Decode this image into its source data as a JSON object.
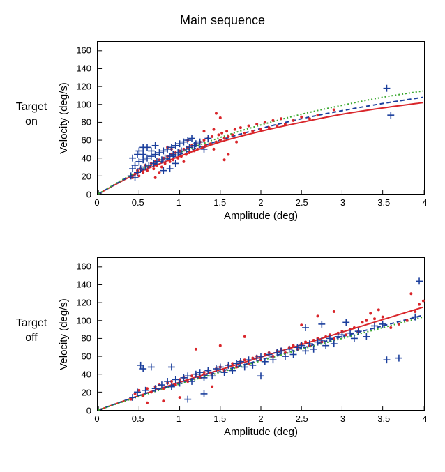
{
  "main_title": "Main sequence",
  "row_labels": {
    "top": "Target\non",
    "bottom": "Target\noff"
  },
  "axes": {
    "xlabel": "Amplitude (deg)",
    "ylabel": "Velocity (deg/s)",
    "xlim": [
      0,
      4
    ],
    "ylim": [
      0,
      170
    ],
    "xticks": [
      0,
      0.5,
      1,
      1.5,
      2,
      2.5,
      3,
      3.5,
      4
    ],
    "xtick_labels": [
      "0",
      "0.5",
      "1",
      "1.5",
      "2",
      "2.5",
      "3",
      "3.5",
      "4"
    ],
    "yticks": [
      0,
      20,
      40,
      60,
      80,
      100,
      120,
      140,
      160
    ],
    "ytick_labels": [
      "0",
      "20",
      "40",
      "60",
      "80",
      "100",
      "120",
      "140",
      "160"
    ],
    "label_fontsize": 15,
    "tick_fontsize": 13
  },
  "colors": {
    "border": "#000000",
    "background": "#ffffff",
    "series_red": "#d9252a",
    "series_blue": "#1a3e9c",
    "curve_red": "#d9252a",
    "curve_blue": "#1a3e9c",
    "curve_green": "#3aa82e"
  },
  "charts": {
    "top": {
      "type": "scatter",
      "red_points": [
        [
          0.42,
          18
        ],
        [
          0.45,
          22
        ],
        [
          0.48,
          26
        ],
        [
          0.5,
          20
        ],
        [
          0.52,
          28
        ],
        [
          0.55,
          24
        ],
        [
          0.58,
          32
        ],
        [
          0.6,
          26
        ],
        [
          0.62,
          30
        ],
        [
          0.65,
          34
        ],
        [
          0.68,
          28
        ],
        [
          0.7,
          36
        ],
        [
          0.72,
          32
        ],
        [
          0.75,
          38
        ],
        [
          0.78,
          30
        ],
        [
          0.8,
          40
        ],
        [
          0.82,
          34
        ],
        [
          0.85,
          42
        ],
        [
          0.88,
          36
        ],
        [
          0.9,
          44
        ],
        [
          0.92,
          38
        ],
        [
          0.95,
          46
        ],
        [
          0.98,
          40
        ],
        [
          1.0,
          48
        ],
        [
          1.02,
          42
        ],
        [
          1.05,
          50
        ],
        [
          1.08,
          44
        ],
        [
          1.1,
          52
        ],
        [
          1.12,
          46
        ],
        [
          1.15,
          54
        ],
        [
          1.18,
          48
        ],
        [
          1.2,
          56
        ],
        [
          1.22,
          50
        ],
        [
          1.25,
          58
        ],
        [
          1.28,
          52
        ],
        [
          1.3,
          60
        ],
        [
          1.32,
          54
        ],
        [
          1.35,
          62
        ],
        [
          1.38,
          56
        ],
        [
          1.4,
          64
        ],
        [
          1.42,
          50
        ],
        [
          1.45,
          58
        ],
        [
          1.48,
          66
        ],
        [
          1.5,
          60
        ],
        [
          1.52,
          68
        ],
        [
          1.55,
          62
        ],
        [
          1.58,
          70
        ],
        [
          1.6,
          64
        ],
        [
          1.45,
          90
        ],
        [
          1.5,
          85
        ],
        [
          1.65,
          66
        ],
        [
          1.68,
          72
        ],
        [
          1.7,
          58
        ],
        [
          1.75,
          74
        ],
        [
          1.8,
          68
        ],
        [
          1.85,
          76
        ],
        [
          1.9,
          70
        ],
        [
          1.95,
          78
        ],
        [
          2.0,
          72
        ],
        [
          2.05,
          80
        ],
        [
          2.1,
          74
        ],
        [
          2.15,
          82
        ],
        [
          2.2,
          76
        ],
        [
          2.25,
          84
        ],
        [
          2.3,
          78
        ],
        [
          2.4,
          82
        ],
        [
          2.5,
          86
        ],
        [
          2.6,
          84
        ],
        [
          2.7,
          88
        ],
        [
          2.9,
          94
        ],
        [
          1.55,
          38
        ],
        [
          1.6,
          44
        ],
        [
          1.42,
          72
        ],
        [
          1.3,
          70
        ],
        [
          0.9,
          50
        ],
        [
          0.85,
          52
        ],
        [
          1.1,
          60
        ],
        [
          1.05,
          36
        ],
        [
          0.7,
          18
        ],
        [
          0.75,
          24
        ]
      ],
      "blue_points": [
        [
          0.4,
          20
        ],
        [
          0.42,
          28
        ],
        [
          0.45,
          32
        ],
        [
          0.48,
          24
        ],
        [
          0.5,
          36
        ],
        [
          0.52,
          28
        ],
        [
          0.55,
          38
        ],
        [
          0.58,
          30
        ],
        [
          0.6,
          40
        ],
        [
          0.62,
          32
        ],
        [
          0.65,
          42
        ],
        [
          0.68,
          34
        ],
        [
          0.7,
          44
        ],
        [
          0.72,
          36
        ],
        [
          0.75,
          46
        ],
        [
          0.78,
          38
        ],
        [
          0.8,
          48
        ],
        [
          0.82,
          40
        ],
        [
          0.85,
          50
        ],
        [
          0.88,
          42
        ],
        [
          0.9,
          52
        ],
        [
          0.92,
          44
        ],
        [
          0.95,
          54
        ],
        [
          0.98,
          46
        ],
        [
          1.0,
          56
        ],
        [
          1.02,
          48
        ],
        [
          1.05,
          58
        ],
        [
          1.08,
          50
        ],
        [
          1.1,
          60
        ],
        [
          1.12,
          52
        ],
        [
          1.15,
          62
        ],
        [
          1.18,
          54
        ],
        [
          1.2,
          56
        ],
        [
          1.25,
          58
        ],
        [
          1.3,
          50
        ],
        [
          1.35,
          62
        ],
        [
          0.5,
          48
        ],
        [
          0.55,
          52
        ],
        [
          0.42,
          40
        ],
        [
          0.48,
          44
        ],
        [
          3.6,
          88
        ],
        [
          3.55,
          118
        ],
        [
          0.95,
          34
        ],
        [
          0.88,
          28
        ],
        [
          0.8,
          26
        ],
        [
          0.7,
          54
        ],
        [
          0.65,
          48
        ],
        [
          0.6,
          52
        ],
        [
          0.55,
          44
        ],
        [
          0.45,
          18
        ]
      ],
      "curves": {
        "red": {
          "color_key": "curve_red",
          "dash": "none",
          "width": 2.0,
          "points": [
            [
              0,
              0
            ],
            [
              0.5,
              24
            ],
            [
              1.0,
              42
            ],
            [
              1.5,
              58
            ],
            [
              2.0,
              70
            ],
            [
              2.5,
              80
            ],
            [
              3.0,
              89
            ],
            [
              3.5,
              96
            ],
            [
              4.0,
              102
            ]
          ]
        },
        "blue": {
          "color_key": "curve_blue",
          "dash": "6,4",
          "width": 2.0,
          "points": [
            [
              0,
              0
            ],
            [
              0.5,
              25
            ],
            [
              1.0,
              44
            ],
            [
              1.5,
              60
            ],
            [
              2.0,
              73
            ],
            [
              2.5,
              84
            ],
            [
              3.0,
              93
            ],
            [
              3.5,
              101
            ],
            [
              4.0,
              108
            ]
          ]
        },
        "green": {
          "color_key": "curve_green",
          "dash": "2,3",
          "width": 2.0,
          "points": [
            [
              0,
              0
            ],
            [
              0.5,
              26
            ],
            [
              1.0,
              46
            ],
            [
              1.5,
              63
            ],
            [
              2.0,
              77
            ],
            [
              2.5,
              89
            ],
            [
              3.0,
              99
            ],
            [
              3.5,
              108
            ],
            [
              4.0,
              115
            ]
          ]
        }
      }
    },
    "bottom": {
      "type": "scatter",
      "red_points": [
        [
          0.4,
          12
        ],
        [
          0.45,
          18
        ],
        [
          0.5,
          22
        ],
        [
          0.55,
          16
        ],
        [
          0.6,
          24
        ],
        [
          0.65,
          20
        ],
        [
          0.7,
          26
        ],
        [
          0.75,
          28
        ],
        [
          0.8,
          24
        ],
        [
          0.85,
          30
        ],
        [
          0.9,
          32
        ],
        [
          0.95,
          28
        ],
        [
          1.0,
          34
        ],
        [
          1.05,
          36
        ],
        [
          1.1,
          32
        ],
        [
          1.15,
          38
        ],
        [
          1.2,
          40
        ],
        [
          1.25,
          36
        ],
        [
          1.3,
          42
        ],
        [
          1.35,
          44
        ],
        [
          1.4,
          40
        ],
        [
          1.45,
          46
        ],
        [
          1.5,
          48
        ],
        [
          1.55,
          44
        ],
        [
          1.6,
          50
        ],
        [
          1.65,
          52
        ],
        [
          1.7,
          48
        ],
        [
          1.75,
          54
        ],
        [
          1.8,
          56
        ],
        [
          1.85,
          52
        ],
        [
          1.9,
          58
        ],
        [
          1.95,
          60
        ],
        [
          2.0,
          56
        ],
        [
          2.05,
          62
        ],
        [
          2.1,
          64
        ],
        [
          2.15,
          60
        ],
        [
          2.2,
          66
        ],
        [
          2.25,
          68
        ],
        [
          2.3,
          64
        ],
        [
          2.35,
          70
        ],
        [
          2.4,
          72
        ],
        [
          2.45,
          68
        ],
        [
          2.5,
          74
        ],
        [
          2.55,
          76
        ],
        [
          2.6,
          72
        ],
        [
          2.65,
          78
        ],
        [
          2.7,
          80
        ],
        [
          2.75,
          76
        ],
        [
          2.8,
          82
        ],
        [
          2.85,
          84
        ],
        [
          2.9,
          80
        ],
        [
          2.95,
          86
        ],
        [
          3.0,
          88
        ],
        [
          3.05,
          84
        ],
        [
          3.1,
          90
        ],
        [
          3.15,
          92
        ],
        [
          3.2,
          88
        ],
        [
          3.25,
          98
        ],
        [
          3.3,
          100
        ],
        [
          3.35,
          108
        ],
        [
          3.4,
          102
        ],
        [
          3.45,
          112
        ],
        [
          3.5,
          104
        ],
        [
          3.6,
          92
        ],
        [
          3.7,
          96
        ],
        [
          3.8,
          100
        ],
        [
          3.85,
          130
        ],
        [
          3.9,
          110
        ],
        [
          3.95,
          118
        ],
        [
          4.0,
          122
        ],
        [
          1.2,
          68
        ],
        [
          1.5,
          72
        ],
        [
          1.8,
          82
        ],
        [
          2.7,
          105
        ],
        [
          2.9,
          110
        ],
        [
          2.5,
          95
        ],
        [
          0.8,
          10
        ],
        [
          1.0,
          14
        ],
        [
          1.4,
          26
        ],
        [
          0.6,
          8
        ]
      ],
      "blue_points": [
        [
          0.42,
          14
        ],
        [
          0.48,
          20
        ],
        [
          0.52,
          50
        ],
        [
          0.58,
          22
        ],
        [
          0.65,
          48
        ],
        [
          0.7,
          24
        ],
        [
          0.78,
          28
        ],
        [
          0.85,
          32
        ],
        [
          0.9,
          26
        ],
        [
          0.95,
          34
        ],
        [
          1.0,
          30
        ],
        [
          1.05,
          36
        ],
        [
          1.1,
          38
        ],
        [
          1.15,
          32
        ],
        [
          1.2,
          40
        ],
        [
          1.25,
          42
        ],
        [
          1.3,
          36
        ],
        [
          1.35,
          44
        ],
        [
          1.4,
          38
        ],
        [
          1.45,
          46
        ],
        [
          1.5,
          48
        ],
        [
          1.55,
          42
        ],
        [
          1.6,
          50
        ],
        [
          1.65,
          44
        ],
        [
          1.7,
          52
        ],
        [
          1.75,
          54
        ],
        [
          1.8,
          48
        ],
        [
          1.85,
          56
        ],
        [
          1.9,
          50
        ],
        [
          1.95,
          58
        ],
        [
          2.0,
          60
        ],
        [
          2.05,
          54
        ],
        [
          2.1,
          62
        ],
        [
          2.15,
          56
        ],
        [
          2.2,
          64
        ],
        [
          2.25,
          66
        ],
        [
          2.3,
          60
        ],
        [
          2.35,
          68
        ],
        [
          2.4,
          62
        ],
        [
          2.45,
          70
        ],
        [
          2.5,
          72
        ],
        [
          2.55,
          66
        ],
        [
          2.6,
          74
        ],
        [
          2.65,
          68
        ],
        [
          2.7,
          76
        ],
        [
          2.75,
          78
        ],
        [
          2.8,
          72
        ],
        [
          2.85,
          80
        ],
        [
          2.9,
          74
        ],
        [
          2.95,
          82
        ],
        [
          3.0,
          84
        ],
        [
          3.05,
          98
        ],
        [
          3.1,
          86
        ],
        [
          3.15,
          80
        ],
        [
          3.2,
          88
        ],
        [
          3.3,
          82
        ],
        [
          3.4,
          94
        ],
        [
          3.5,
          96
        ],
        [
          3.55,
          56
        ],
        [
          3.7,
          58
        ],
        [
          3.95,
          144
        ],
        [
          3.9,
          104
        ],
        [
          0.55,
          46
        ],
        [
          0.9,
          48
        ],
        [
          1.1,
          12
        ],
        [
          1.3,
          18
        ],
        [
          2.0,
          38
        ],
        [
          2.55,
          92
        ],
        [
          2.75,
          96
        ]
      ],
      "curves": {
        "red": {
          "color_key": "curve_red",
          "dash": "none",
          "width": 2.0,
          "points": [
            [
              0,
              0
            ],
            [
              0.5,
              16
            ],
            [
              1.0,
              31
            ],
            [
              1.5,
              45
            ],
            [
              2.0,
              59
            ],
            [
              2.5,
              73
            ],
            [
              3.0,
              87
            ],
            [
              3.5,
              101
            ],
            [
              4.0,
              115
            ]
          ]
        },
        "blue": {
          "color_key": "curve_blue",
          "dash": "6,4",
          "width": 2.0,
          "points": [
            [
              0,
              0
            ],
            [
              0.5,
              16
            ],
            [
              1.0,
              30
            ],
            [
              1.5,
              43
            ],
            [
              2.0,
              56
            ],
            [
              2.5,
              69
            ],
            [
              3.0,
              82
            ],
            [
              3.5,
              94
            ],
            [
              4.0,
              106
            ]
          ]
        },
        "green": {
          "color_key": "curve_green",
          "dash": "2,3",
          "width": 2.0,
          "points": [
            [
              0,
              0
            ],
            [
              0.5,
              15
            ],
            [
              1.0,
              29
            ],
            [
              1.5,
              42
            ],
            [
              2.0,
              55
            ],
            [
              2.5,
              68
            ],
            [
              3.0,
              80
            ],
            [
              3.5,
              92
            ],
            [
              4.0,
              104
            ]
          ]
        }
      }
    }
  },
  "markers": {
    "red": {
      "type": "dot",
      "size": 2.0
    },
    "blue": {
      "type": "plus",
      "size": 5
    }
  }
}
